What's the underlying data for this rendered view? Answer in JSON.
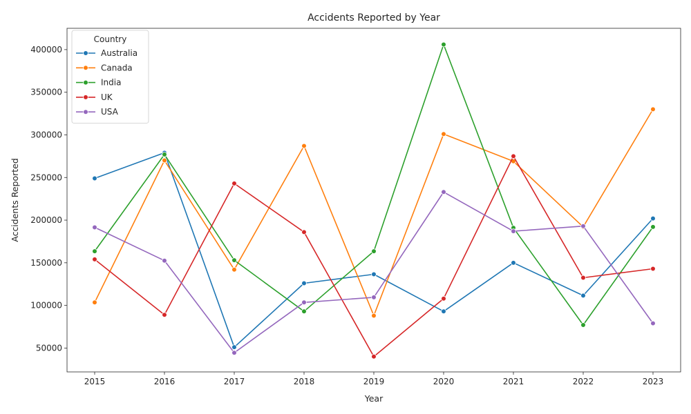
{
  "chart_data": {
    "type": "line",
    "title": "Accidents Reported by Year",
    "xlabel": "Year",
    "ylabel": "Accidents Reported",
    "x": [
      2015,
      2016,
      2017,
      2018,
      2019,
      2020,
      2021,
      2022,
      2023
    ],
    "y_ticks": [
      50000,
      100000,
      150000,
      200000,
      250000,
      300000,
      350000,
      400000
    ],
    "ylim": [
      22000,
      425000
    ],
    "grid": false,
    "legend": {
      "title": "Country",
      "placement": "top-left"
    },
    "series": [
      {
        "name": "Australia",
        "color": "#1f77b4",
        "values": [
          249000,
          279000,
          51000,
          126000,
          136500,
          93000,
          150000,
          111500,
          202000
        ]
      },
      {
        "name": "Canada",
        "color": "#ff7f0e",
        "values": [
          103500,
          270000,
          142000,
          287000,
          88000,
          301000,
          269000,
          192000,
          330000
        ]
      },
      {
        "name": "India",
        "color": "#2ca02c",
        "values": [
          163500,
          277000,
          153000,
          93000,
          163500,
          406000,
          191000,
          77000,
          192000
        ]
      },
      {
        "name": "UK",
        "color": "#d62728",
        "values": [
          154000,
          89000,
          243000,
          186000,
          40000,
          108000,
          275000,
          132500,
          143000
        ]
      },
      {
        "name": "USA",
        "color": "#9467bd",
        "values": [
          191500,
          152500,
          44500,
          103500,
          109500,
          233000,
          187000,
          193000,
          79000
        ]
      }
    ]
  }
}
